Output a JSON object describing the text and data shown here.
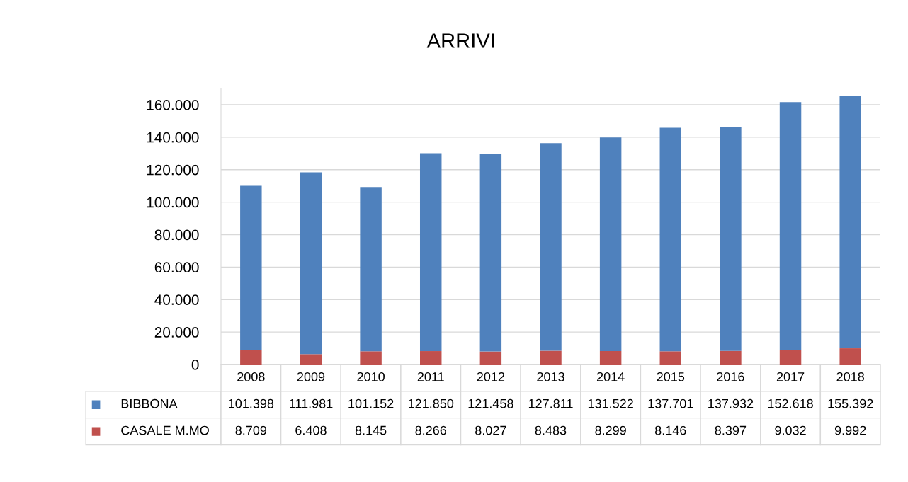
{
  "chart_data": {
    "type": "bar",
    "title": "ARRIVI",
    "stacked": true,
    "grid": "y",
    "legend": "bottom",
    "categories": [
      "2008",
      "2009",
      "2010",
      "2011",
      "2012",
      "2013",
      "2014",
      "2015",
      "2016",
      "2017",
      "2018"
    ],
    "ylim": [
      0,
      170000
    ],
    "yticks": [
      {
        "value": 0,
        "label": "0"
      },
      {
        "value": 20000,
        "label": "20.000"
      },
      {
        "value": 40000,
        "label": "40.000"
      },
      {
        "value": 60000,
        "label": "60.000"
      },
      {
        "value": 80000,
        "label": "80.000"
      },
      {
        "value": 100000,
        "label": "100.000"
      },
      {
        "value": 120000,
        "label": "120.000"
      },
      {
        "value": 140000,
        "label": "140.000"
      },
      {
        "value": 160000,
        "label": "160.000"
      }
    ],
    "series": [
      {
        "name": "CASALE M.MO",
        "color": "#c0504d",
        "values": [
          8709,
          6408,
          8145,
          8266,
          8027,
          8483,
          8299,
          8146,
          8397,
          9032,
          9992
        ],
        "value_labels": [
          "8.709",
          "6.408",
          "8.145",
          "8.266",
          "8.027",
          "8.483",
          "8.299",
          "8.146",
          "8.397",
          "9.032",
          "9.992"
        ]
      },
      {
        "name": "BIBBONA",
        "color": "#4f81bd",
        "values": [
          101398,
          111981,
          101152,
          121850,
          121458,
          127811,
          131522,
          137701,
          137932,
          152618,
          155392
        ],
        "value_labels": [
          "101.398",
          "111.981",
          "101.152",
          "121.850",
          "121.458",
          "127.811",
          "131.522",
          "137.701",
          "137.932",
          "152.618",
          "155.392"
        ]
      }
    ]
  }
}
